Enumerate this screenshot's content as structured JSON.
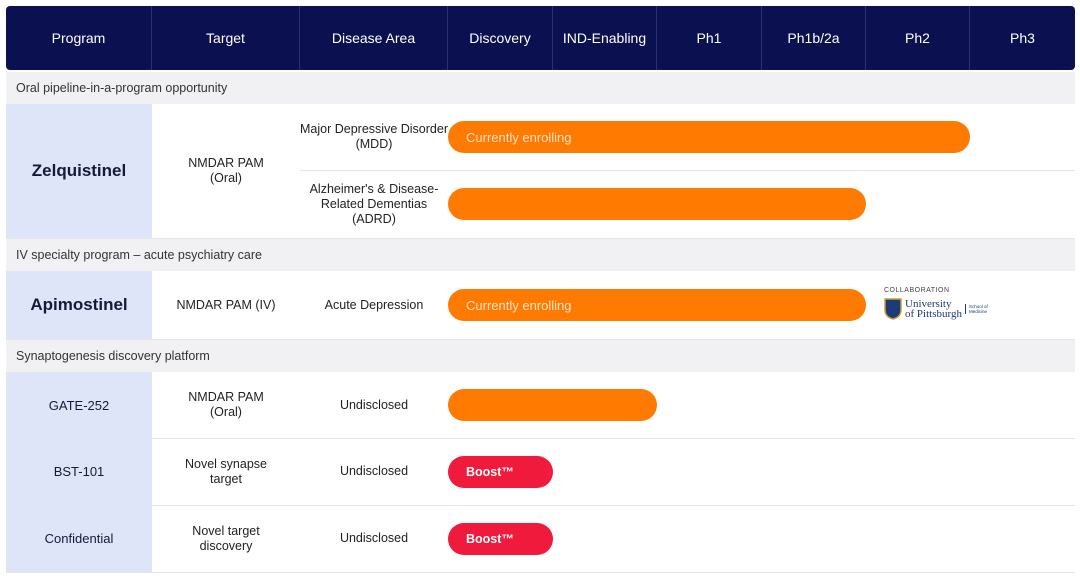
{
  "header": [
    "Program",
    "Target",
    "Disease Area",
    "Discovery",
    "IND-Enabling",
    "Ph1",
    "Ph1b/2a",
    "Ph2",
    "Ph3"
  ],
  "sections": [
    {
      "title": "Oral pipeline-in-a-program opportunity",
      "programs": [
        {
          "name": "Zelquistinel",
          "target": "NMDAR PAM (Oral)",
          "indications": [
            {
              "disease": "Major Depressive Disorder (MDD)",
              "bar_label": "Currently enrolling"
            },
            {
              "disease": "Alzheimer's & Disease-Related Dementias (ADRD)"
            }
          ]
        }
      ]
    },
    {
      "title": "IV specialty program – acute psychiatry care",
      "programs": [
        {
          "name": "Apimostinel",
          "target": "NMDAR PAM (IV)",
          "indications": [
            {
              "disease": "Acute Depression",
              "bar_label": "Currently enrolling"
            }
          ]
        }
      ]
    },
    {
      "title": "Synaptogenesis discovery platform",
      "programs": [
        {
          "name": "GATE-252",
          "target": "NMDAR PAM (Oral)",
          "indications": [
            {
              "disease": "Undisclosed"
            }
          ]
        },
        {
          "name": "BST-101",
          "target": "Novel synapse target",
          "indications": [
            {
              "disease": "Undisclosed",
              "bar_label": "Boost™"
            }
          ]
        },
        {
          "name": "Confidential",
          "target": "Novel target discovery",
          "indications": [
            {
              "disease": "Undisclosed",
              "bar_label": "Boost™"
            }
          ]
        }
      ]
    }
  ],
  "collaboration": {
    "label": "COLLABORATION",
    "university": "University of Pittsburgh",
    "school": "School of Medicine"
  }
}
